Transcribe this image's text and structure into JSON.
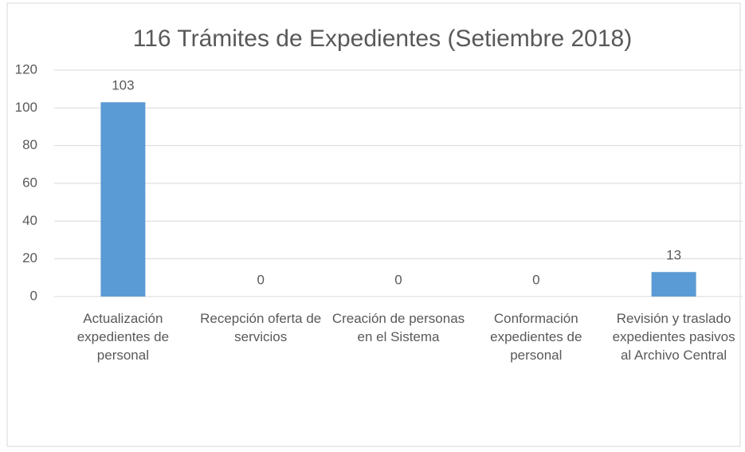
{
  "chart_data": {
    "type": "bar",
    "title": "116 Trámites de Expedientes (Setiembre 2018)",
    "categories": [
      "Actualización expedientes de personal",
      "Recepción oferta de servicios",
      "Creación de personas en el Sistema",
      "Conformación expedientes de personal",
      "Revisión y traslado expedientes pasivos al Archivo Central"
    ],
    "values": [
      103,
      0,
      0,
      0,
      13
    ],
    "color": "#5b9bd5",
    "ylim": [
      0,
      120
    ],
    "yticks": [
      0,
      20,
      40,
      60,
      80,
      100,
      120
    ],
    "grid": true
  }
}
